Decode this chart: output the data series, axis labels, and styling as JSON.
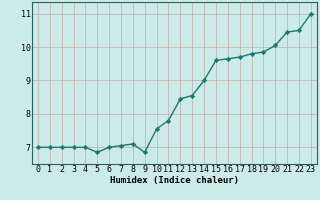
{
  "x": [
    0,
    1,
    2,
    3,
    4,
    5,
    6,
    7,
    8,
    9,
    10,
    11,
    12,
    13,
    14,
    15,
    16,
    17,
    18,
    19,
    20,
    21,
    22,
    23
  ],
  "y": [
    7.0,
    7.0,
    7.0,
    7.0,
    7.0,
    6.85,
    7.0,
    7.05,
    7.1,
    6.85,
    7.55,
    7.8,
    8.45,
    8.55,
    9.0,
    9.6,
    9.65,
    9.7,
    9.8,
    9.85,
    10.05,
    10.45,
    10.5,
    11.0
  ],
  "line_color": "#1a7a6e",
  "marker": "D",
  "marker_size": 2.2,
  "bg_color": "#cceae8",
  "grid_color": "#c0aaaa",
  "xlabel": "Humidex (Indice chaleur)",
  "xlim": [
    -0.5,
    23.5
  ],
  "ylim": [
    6.5,
    11.35
  ],
  "yticks": [
    7,
    8,
    9,
    10,
    11
  ],
  "xticks": [
    0,
    1,
    2,
    3,
    4,
    5,
    6,
    7,
    8,
    9,
    10,
    11,
    12,
    13,
    14,
    15,
    16,
    17,
    18,
    19,
    20,
    21,
    22,
    23
  ],
  "xlabel_fontsize": 6.5,
  "tick_fontsize": 6.0,
  "line_width": 1.0
}
